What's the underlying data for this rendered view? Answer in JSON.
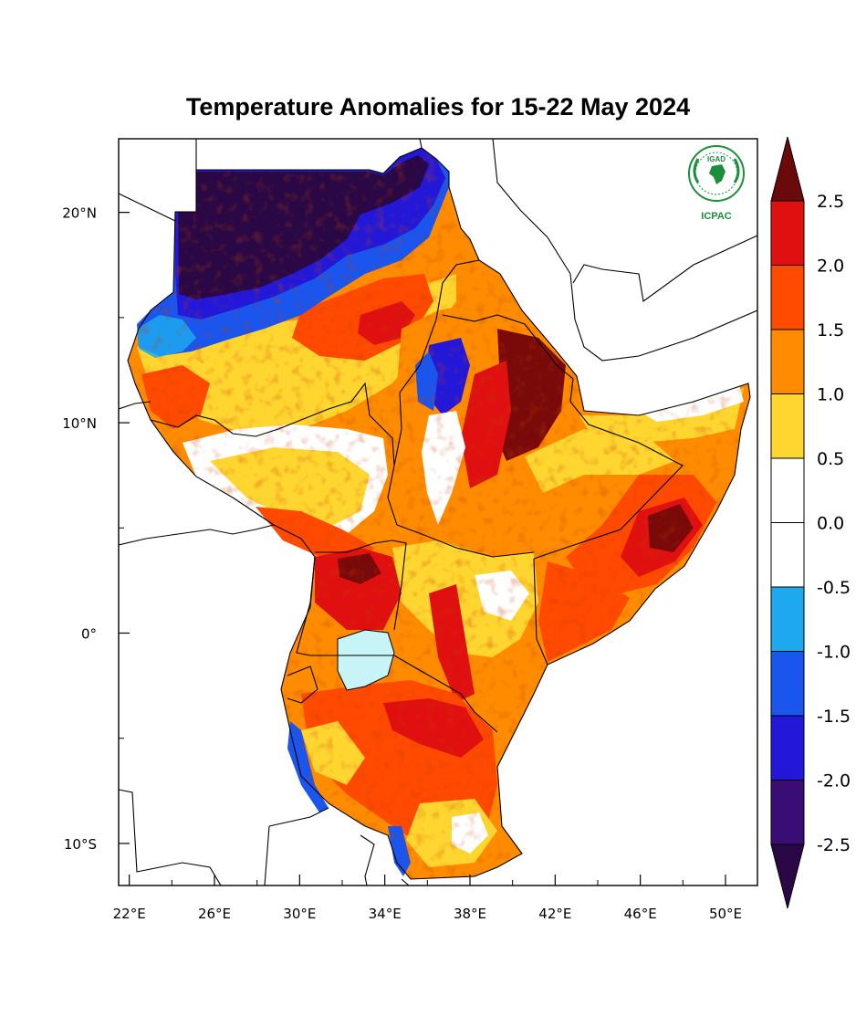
{
  "title": "Temperature Anomalies for 15-22 May 2024",
  "logo": {
    "top_text": "IGAD",
    "bottom_text": "ICPAC",
    "color": "#1a8f3c",
    "icon": "igad-icpac-logo-icon"
  },
  "axes": {
    "x_ticks": [
      {
        "lon": 22,
        "label": "22°E"
      },
      {
        "lon": 26,
        "label": "26°E"
      },
      {
        "lon": 30,
        "label": "30°E"
      },
      {
        "lon": 34,
        "label": "34°E"
      },
      {
        "lon": 38,
        "label": "38°E"
      },
      {
        "lon": 42,
        "label": "42°E"
      },
      {
        "lon": 46,
        "label": "46°E"
      },
      {
        "lon": 50,
        "label": "50°E"
      }
    ],
    "y_ticks": [
      {
        "lat": 20,
        "label": "20°N"
      },
      {
        "lat": 10,
        "label": "10°N"
      },
      {
        "lat": 0,
        "label": "0°"
      },
      {
        "lat": -10,
        "label": "10°S"
      }
    ],
    "lon_range": [
      21.5,
      51.5
    ],
    "lat_range": [
      -12,
      23.5
    ]
  },
  "colorbar": {
    "labels": [
      "2.5",
      "2.0",
      "1.5",
      "1.0",
      "0.5",
      "0.0",
      "-0.5",
      "-1.0",
      "-1.5",
      "-2.0",
      "-2.5"
    ],
    "colors": [
      "#6a0a0a",
      "#e01010",
      "#ff4a00",
      "#ff8c00",
      "#ffd530",
      "#ffffff",
      "#ffffff",
      "#1ea8ee",
      "#1a55ee",
      "#2418d8",
      "#3a0d75",
      "#2a0845"
    ],
    "units_note": ""
  },
  "palette": {
    "very_cold": "#2a0845",
    "cold_deep": "#3a0d75",
    "cold": "#2418d8",
    "cool": "#1a55ee",
    "cool_light": "#1ea8ee",
    "lake": "#c6f4f7",
    "neutral": "#ffffff",
    "warm": "#ffd530",
    "warm_mid": "#ff8c00",
    "hot": "#ff4a00",
    "very_hot": "#e01010",
    "extreme": "#7a0a0a"
  }
}
